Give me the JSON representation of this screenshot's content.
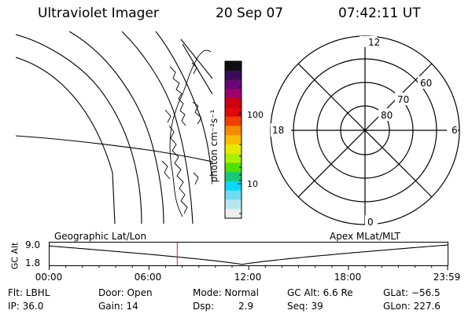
{
  "header": {
    "title": "Ultraviolet Imager",
    "date": "20 Sep 07",
    "time": "07:42:11 UT"
  },
  "colorbar": {
    "label": "photon cm⁻²s⁻¹",
    "ticks": [
      "100",
      "10"
    ],
    "colors": [
      "#101010",
      "#3a0d5a",
      "#680878",
      "#a0006a",
      "#d00010",
      "#e00808",
      "#ee4000",
      "#f48a00",
      "#f6be00",
      "#e6ea00",
      "#aaf000",
      "#4ee200",
      "#18c878",
      "#0ad8ff",
      "#70dcf0",
      "#b8e6f0",
      "#eeeeee"
    ]
  },
  "polar_plot": {
    "mlt_labels": [
      "12",
      "18",
      "6",
      "0"
    ],
    "lat_labels": [
      "60",
      "70",
      "80"
    ]
  },
  "altitude_plot": {
    "left_label": "Geographic Lat/Lon",
    "right_label": "Apex MLat/MLT",
    "ylabel": "GC Alt",
    "yticks": [
      "9.0",
      "1.8"
    ],
    "xticks": [
      "00:00",
      "06:00",
      "12:00",
      "18:00",
      "23:59"
    ],
    "current_time_hours": 7.7
  },
  "info": {
    "filter": "Flt: LBHL",
    "ip": "IP: 36.0",
    "door": "Door: Open",
    "gain": "Gain: 14",
    "mode": "Mode: Normal",
    "dsp_label": "Dsp:",
    "dsp_value": "2.9",
    "gc_alt": "GC Alt: 6.6 Re",
    "seq": "Seq: 39",
    "glat": "GLat: −56.5",
    "glon": "GLon: 227.6"
  }
}
